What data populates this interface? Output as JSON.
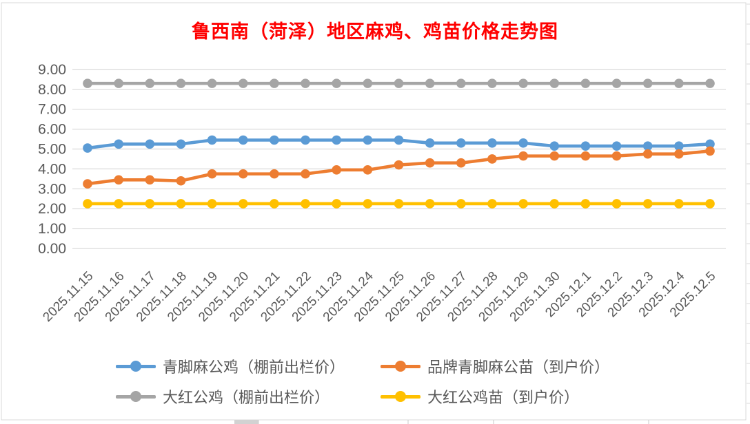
{
  "title": {
    "text": "鲁西南（菏泽）地区麻鸡、鸡苗价格走势图",
    "color": "#FF0000"
  },
  "axis": {
    "y_ticks": [
      "9.00",
      "8.00",
      "7.00",
      "6.00",
      "5.00",
      "4.00",
      "3.00",
      "2.00",
      "1.00",
      "0.00"
    ],
    "label_color": "#595959",
    "gridline_color": "#D9D9D9"
  },
  "chart_data": {
    "type": "line",
    "title": "鲁西南（菏泽）地区麻鸡、鸡苗价格走势图",
    "xlabel": "",
    "ylabel": "",
    "ylim": [
      0,
      9
    ],
    "ytick_step": 1,
    "grid": "horizontal",
    "legend_position": "bottom",
    "categories": [
      "2025.11.15",
      "2025.11.16",
      "2025.11.17",
      "2025.11.18",
      "2025.11.19",
      "2025.11.20",
      "2025.11.21",
      "2025.11.22",
      "2025.11.23",
      "2025.11.24",
      "2025.11.25",
      "2025.11.26",
      "2025.11.27",
      "2025.11.28",
      "2025.11.29",
      "2025.11.30",
      "2025.12.1",
      "2025.12.2",
      "2025.12.3",
      "2025.12.4",
      "2025.12.5"
    ],
    "series": [
      {
        "name": "青脚麻公鸡（棚前出栏价）",
        "color": "#5B9BD5",
        "values": [
          5.05,
          5.25,
          5.25,
          5.25,
          5.45,
          5.45,
          5.45,
          5.45,
          5.45,
          5.45,
          5.45,
          5.3,
          5.3,
          5.3,
          5.3,
          5.15,
          5.15,
          5.15,
          5.15,
          5.15,
          5.25
        ]
      },
      {
        "name": "品牌青脚麻公苗（到户价）",
        "color": "#ED7D31",
        "values": [
          3.25,
          3.45,
          3.45,
          3.4,
          3.75,
          3.75,
          3.75,
          3.75,
          3.95,
          3.95,
          4.2,
          4.3,
          4.3,
          4.5,
          4.65,
          4.65,
          4.65,
          4.65,
          4.75,
          4.75,
          4.9
        ]
      },
      {
        "name": "大红公鸡（棚前出栏价）",
        "color": "#A5A5A5",
        "values": [
          8.3,
          8.3,
          8.3,
          8.3,
          8.3,
          8.3,
          8.3,
          8.3,
          8.3,
          8.3,
          8.3,
          8.3,
          8.3,
          8.3,
          8.3,
          8.3,
          8.3,
          8.3,
          8.3,
          8.3,
          8.3
        ]
      },
      {
        "name": "大红公鸡苗（到户价）",
        "color": "#FFC000",
        "values": [
          2.25,
          2.25,
          2.25,
          2.25,
          2.25,
          2.25,
          2.25,
          2.25,
          2.25,
          2.25,
          2.25,
          2.25,
          2.25,
          2.25,
          2.25,
          2.25,
          2.25,
          2.25,
          2.25,
          2.25,
          2.25
        ]
      }
    ]
  }
}
